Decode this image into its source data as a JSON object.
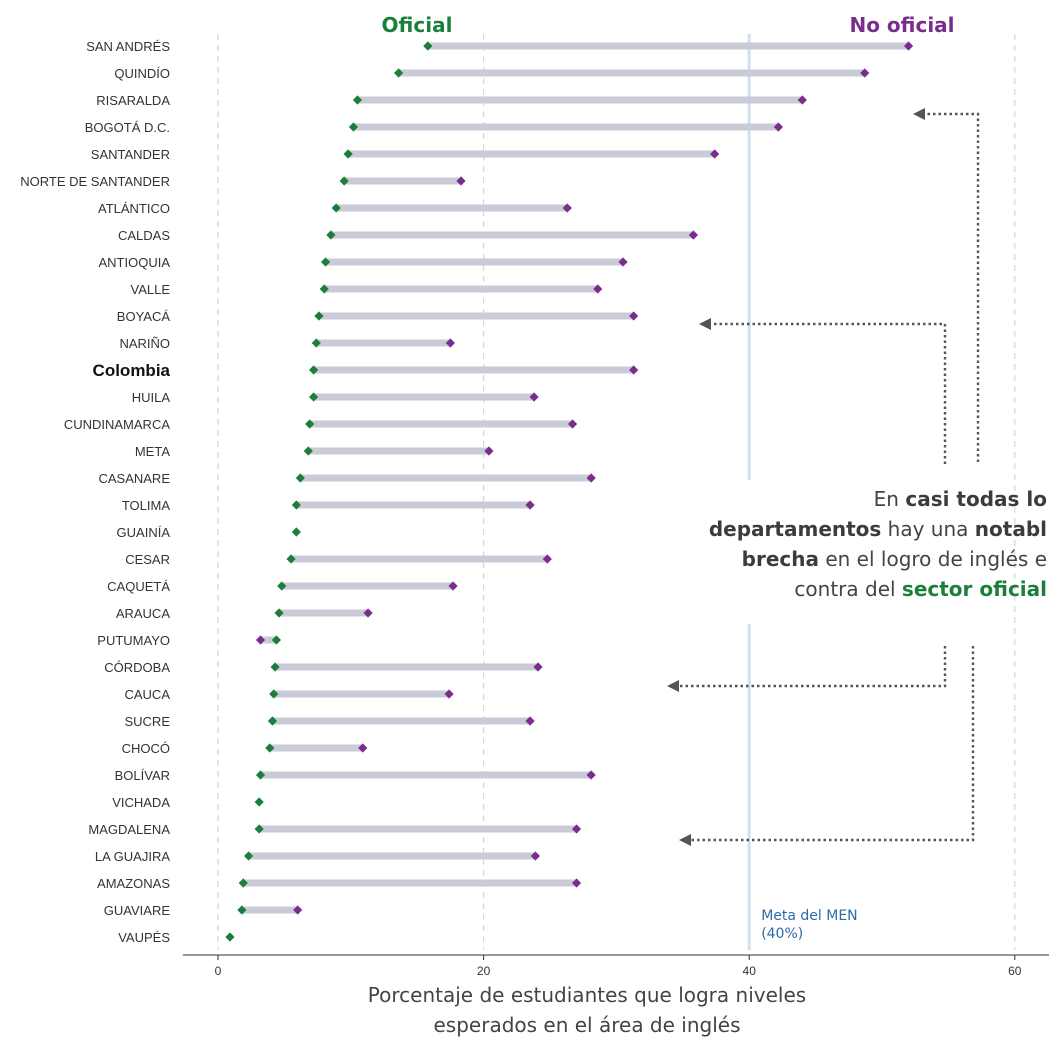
{
  "chart_data": {
    "type": "dumbbell",
    "legend": {
      "oficial": "Oficial",
      "no_oficial": "No oficial"
    },
    "colors": {
      "oficial": "#1b7f3b",
      "no_oficial": "#7b2d8e",
      "bar": "#c9cbd6",
      "meta_line": "#cfe0f1",
      "meta_text": "#2d6aa8",
      "grid": "#d6d6d6",
      "arrow": "#555555"
    },
    "xlabel": [
      "Porcentaje de estudiantes que logra niveles",
      "esperados en el área de inglés"
    ],
    "xticks": [
      0,
      20,
      40,
      60
    ],
    "xlim": [
      -2.8,
      63
    ],
    "highlight": "Colombia",
    "reference": {
      "value": 40,
      "label": [
        "Meta del MEN",
        "(40%)"
      ]
    },
    "annotation": {
      "lines": [
        [
          {
            "t": "En ",
            "s": "n"
          },
          {
            "t": "casi todas lo",
            "s": "b"
          }
        ],
        [
          {
            "t": "departamentos",
            "s": "b"
          },
          {
            "t": " hay una ",
            "s": "n"
          },
          {
            "t": "notabl",
            "s": "b"
          }
        ],
        [
          {
            "t": "brecha",
            "s": "b"
          },
          {
            "t": " en el logro de inglés e",
            "s": "n"
          }
        ],
        [
          {
            "t": "contra del ",
            "s": "n"
          },
          {
            "t": "sector oficial",
            "s": "g"
          }
        ]
      ]
    },
    "departments": [
      {
        "name": "SAN ANDRÉS",
        "oficial": 15.8,
        "no_oficial": 52.0
      },
      {
        "name": "QUINDÍO",
        "oficial": 13.6,
        "no_oficial": 48.7
      },
      {
        "name": "RISARALDA",
        "oficial": 10.5,
        "no_oficial": 44.0
      },
      {
        "name": "BOGOTÁ D.C.",
        "oficial": 10.2,
        "no_oficial": 42.2
      },
      {
        "name": "SANTANDER",
        "oficial": 9.8,
        "no_oficial": 37.4
      },
      {
        "name": "NORTE DE SANTANDER",
        "oficial": 9.5,
        "no_oficial": 18.3
      },
      {
        "name": "ATLÁNTICO",
        "oficial": 8.9,
        "no_oficial": 26.3
      },
      {
        "name": "CALDAS",
        "oficial": 8.5,
        "no_oficial": 35.8
      },
      {
        "name": "ANTIOQUIA",
        "oficial": 8.1,
        "no_oficial": 30.5
      },
      {
        "name": "VALLE",
        "oficial": 8.0,
        "no_oficial": 28.6
      },
      {
        "name": "BOYACÁ",
        "oficial": 7.6,
        "no_oficial": 31.3
      },
      {
        "name": "NARIÑO",
        "oficial": 7.4,
        "no_oficial": 17.5
      },
      {
        "name": "Colombia",
        "oficial": 7.2,
        "no_oficial": 31.3
      },
      {
        "name": "HUILA",
        "oficial": 7.2,
        "no_oficial": 23.8
      },
      {
        "name": "CUNDINAMARCA",
        "oficial": 6.9,
        "no_oficial": 26.7
      },
      {
        "name": "META",
        "oficial": 6.8,
        "no_oficial": 20.4
      },
      {
        "name": "CASANARE",
        "oficial": 6.2,
        "no_oficial": 28.1
      },
      {
        "name": "TOLIMA",
        "oficial": 5.9,
        "no_oficial": 23.5
      },
      {
        "name": "GUAINÍA",
        "oficial": 5.9,
        "no_oficial": null
      },
      {
        "name": "CESAR",
        "oficial": 5.5,
        "no_oficial": 24.8
      },
      {
        "name": "CAQUETÁ",
        "oficial": 4.8,
        "no_oficial": 17.7
      },
      {
        "name": "ARAUCA",
        "oficial": 4.6,
        "no_oficial": 11.3
      },
      {
        "name": "PUTUMAYO",
        "oficial": 4.4,
        "no_oficial": 3.2
      },
      {
        "name": "CÓRDOBA",
        "oficial": 4.3,
        "no_oficial": 24.1
      },
      {
        "name": "CAUCA",
        "oficial": 4.2,
        "no_oficial": 17.4
      },
      {
        "name": "SUCRE",
        "oficial": 4.1,
        "no_oficial": 23.5
      },
      {
        "name": "CHOCÓ",
        "oficial": 3.9,
        "no_oficial": 10.9
      },
      {
        "name": "BOLÍVAR",
        "oficial": 3.2,
        "no_oficial": 28.1
      },
      {
        "name": "VICHADA",
        "oficial": 3.1,
        "no_oficial": null
      },
      {
        "name": "MAGDALENA",
        "oficial": 3.1,
        "no_oficial": 27.0
      },
      {
        "name": "LA GUAJIRA",
        "oficial": 2.3,
        "no_oficial": 23.9
      },
      {
        "name": "AMAZONAS",
        "oficial": 1.9,
        "no_oficial": 27.0
      },
      {
        "name": "GUAVIARE",
        "oficial": 1.8,
        "no_oficial": 6.0
      },
      {
        "name": "VAUPÉS",
        "oficial": 0.9,
        "no_oficial": null
      }
    ]
  }
}
